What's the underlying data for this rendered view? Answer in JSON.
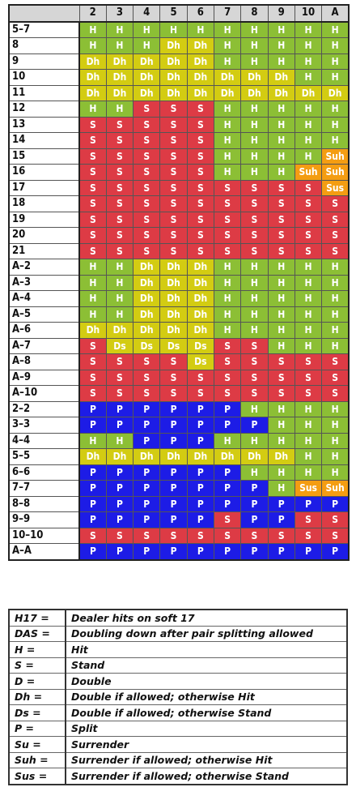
{
  "dealer_cards": [
    "2",
    "3",
    "4",
    "5",
    "6",
    "7",
    "8",
    "9",
    "10",
    "A"
  ],
  "rows": [
    {
      "hand": "5–7",
      "actions": [
        "H",
        "H",
        "H",
        "H",
        "H",
        "H",
        "H",
        "H",
        "H",
        "H"
      ]
    },
    {
      "hand": "8",
      "actions": [
        "H",
        "H",
        "H",
        "Dh",
        "Dh",
        "H",
        "H",
        "H",
        "H",
        "H"
      ]
    },
    {
      "hand": "9",
      "actions": [
        "Dh",
        "Dh",
        "Dh",
        "Dh",
        "Dh",
        "H",
        "H",
        "H",
        "H",
        "H"
      ]
    },
    {
      "hand": "10",
      "actions": [
        "Dh",
        "Dh",
        "Dh",
        "Dh",
        "Dh",
        "Dh",
        "Dh",
        "Dh",
        "H",
        "H"
      ]
    },
    {
      "hand": "11",
      "actions": [
        "Dh",
        "Dh",
        "Dh",
        "Dh",
        "Dh",
        "Dh",
        "Dh",
        "Dh",
        "Dh",
        "Dh"
      ]
    },
    {
      "hand": "12",
      "actions": [
        "H",
        "H",
        "S",
        "S",
        "S",
        "H",
        "H",
        "H",
        "H",
        "H"
      ]
    },
    {
      "hand": "13",
      "actions": [
        "S",
        "S",
        "S",
        "S",
        "S",
        "H",
        "H",
        "H",
        "H",
        "H"
      ]
    },
    {
      "hand": "14",
      "actions": [
        "S",
        "S",
        "S",
        "S",
        "S",
        "H",
        "H",
        "H",
        "H",
        "H"
      ]
    },
    {
      "hand": "15",
      "actions": [
        "S",
        "S",
        "S",
        "S",
        "S",
        "H",
        "H",
        "H",
        "H",
        "Suh"
      ]
    },
    {
      "hand": "16",
      "actions": [
        "S",
        "S",
        "S",
        "S",
        "S",
        "H",
        "H",
        "H",
        "Suh",
        "Suh"
      ]
    },
    {
      "hand": "17",
      "actions": [
        "S",
        "S",
        "S",
        "S",
        "S",
        "S",
        "S",
        "S",
        "S",
        "Sus"
      ]
    },
    {
      "hand": "18",
      "actions": [
        "S",
        "S",
        "S",
        "S",
        "S",
        "S",
        "S",
        "S",
        "S",
        "S"
      ]
    },
    {
      "hand": "19",
      "actions": [
        "S",
        "S",
        "S",
        "S",
        "S",
        "S",
        "S",
        "S",
        "S",
        "S"
      ]
    },
    {
      "hand": "20",
      "actions": [
        "S",
        "S",
        "S",
        "S",
        "S",
        "S",
        "S",
        "S",
        "S",
        "S"
      ]
    },
    {
      "hand": "21",
      "actions": [
        "S",
        "S",
        "S",
        "S",
        "S",
        "S",
        "S",
        "S",
        "S",
        "S"
      ]
    },
    {
      "hand": "A–2",
      "actions": [
        "H",
        "H",
        "Dh",
        "Dh",
        "Dh",
        "H",
        "H",
        "H",
        "H",
        "H"
      ]
    },
    {
      "hand": "A–3",
      "actions": [
        "H",
        "H",
        "Dh",
        "Dh",
        "Dh",
        "H",
        "H",
        "H",
        "H",
        "H"
      ]
    },
    {
      "hand": "A–4",
      "actions": [
        "H",
        "H",
        "Dh",
        "Dh",
        "Dh",
        "H",
        "H",
        "H",
        "H",
        "H"
      ]
    },
    {
      "hand": "A–5",
      "actions": [
        "H",
        "H",
        "Dh",
        "Dh",
        "Dh",
        "H",
        "H",
        "H",
        "H",
        "H"
      ]
    },
    {
      "hand": "A–6",
      "actions": [
        "Dh",
        "Dh",
        "Dh",
        "Dh",
        "Dh",
        "H",
        "H",
        "H",
        "H",
        "H"
      ]
    },
    {
      "hand": "A–7",
      "actions": [
        "S",
        "Ds",
        "Ds",
        "Ds",
        "Ds",
        "S",
        "S",
        "H",
        "H",
        "H"
      ]
    },
    {
      "hand": "A–8",
      "actions": [
        "S",
        "S",
        "S",
        "S",
        "Ds",
        "S",
        "S",
        "S",
        "S",
        "S"
      ]
    },
    {
      "hand": "A–9",
      "actions": [
        "S",
        "S",
        "S",
        "S",
        "S",
        "S",
        "S",
        "S",
        "S",
        "S"
      ]
    },
    {
      "hand": "A–10",
      "actions": [
        "S",
        "S",
        "S",
        "S",
        "S",
        "S",
        "S",
        "S",
        "S",
        "S"
      ]
    },
    {
      "hand": "2–2",
      "actions": [
        "P",
        "P",
        "P",
        "P",
        "P",
        "P",
        "H",
        "H",
        "H",
        "H"
      ]
    },
    {
      "hand": "3–3",
      "actions": [
        "P",
        "P",
        "P",
        "P",
        "P",
        "P",
        "P",
        "H",
        "H",
        "H"
      ]
    },
    {
      "hand": "4–4",
      "actions": [
        "H",
        "H",
        "P",
        "P",
        "P",
        "H",
        "H",
        "H",
        "H",
        "H"
      ]
    },
    {
      "hand": "5–5",
      "actions": [
        "Dh",
        "Dh",
        "Dh",
        "Dh",
        "Dh",
        "Dh",
        "Dh",
        "Dh",
        "H",
        "H"
      ]
    },
    {
      "hand": "6–6",
      "actions": [
        "P",
        "P",
        "P",
        "P",
        "P",
        "P",
        "H",
        "H",
        "H",
        "H"
      ]
    },
    {
      "hand": "7–7",
      "actions": [
        "P",
        "P",
        "P",
        "P",
        "P",
        "P",
        "P",
        "H",
        "Sus",
        "Suh"
      ]
    },
    {
      "hand": "8–8",
      "actions": [
        "P",
        "P",
        "P",
        "P",
        "P",
        "P",
        "P",
        "P",
        "P",
        "P"
      ]
    },
    {
      "hand": "9–9",
      "actions": [
        "P",
        "P",
        "P",
        "P",
        "P",
        "S",
        "P",
        "P",
        "S",
        "S"
      ]
    },
    {
      "hand": "10–10",
      "actions": [
        "S",
        "S",
        "S",
        "S",
        "S",
        "S",
        "S",
        "S",
        "S",
        "S"
      ]
    },
    {
      "hand": "A–A",
      "actions": [
        "P",
        "P",
        "P",
        "P",
        "P",
        "P",
        "P",
        "P",
        "P",
        "P"
      ]
    }
  ],
  "action_colors": {
    "H": "#8cbf35",
    "S": "#dd3b45",
    "Dh": "#d3cc12",
    "Ds": "#d3cc12",
    "P": "#1d1ce6",
    "Suh": "#f49d12",
    "Sus": "#f49d12"
  },
  "legend": [
    {
      "key": "H17 =",
      "desc": "Dealer hits on soft 17"
    },
    {
      "key": "DAS =",
      "desc": "Doubling down after pair splitting allowed"
    },
    {
      "key": "H =",
      "desc": "Hit"
    },
    {
      "key": "S =",
      "desc": "Stand"
    },
    {
      "key": "D =",
      "desc": "Double"
    },
    {
      "key": "Dh =",
      "desc": "Double if allowed; otherwise Hit"
    },
    {
      "key": "Ds =",
      "desc": "Double if allowed; otherwise Stand"
    },
    {
      "key": "P =",
      "desc": "Split"
    },
    {
      "key": "Su =",
      "desc": "Surrender"
    },
    {
      "key": "Suh =",
      "desc": "Surrender if allowed; otherwise Hit"
    },
    {
      "key": "Sus =",
      "desc": "Surrender if allowed; otherwise Stand"
    }
  ]
}
